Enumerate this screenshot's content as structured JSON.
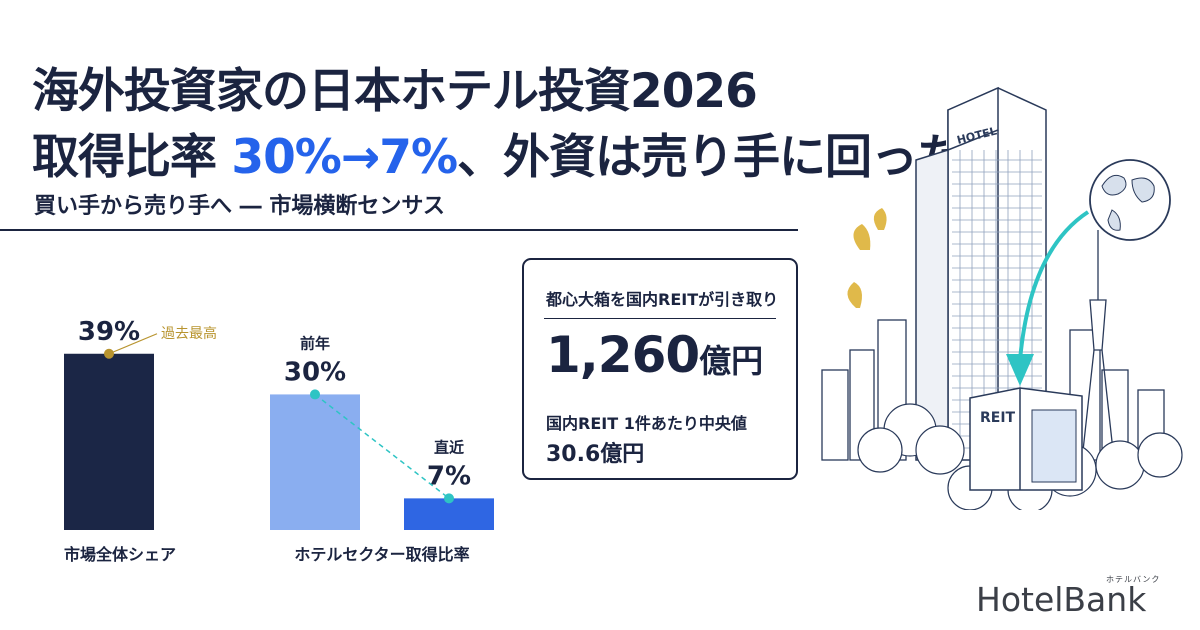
{
  "header": {
    "title_line1": "海外投資家の日本ホテル投資2026",
    "title_line2_prefix": "取得比率",
    "title_line2_accent": "30%→7%",
    "title_line2_suffix": "、外資は売り手に回った",
    "subtitle": "買い手から売り手へ ― 市場横断センサス"
  },
  "chart_data": {
    "type": "bar",
    "title": "",
    "ylim": [
      0,
      45
    ],
    "groups": [
      {
        "label": "市場全体シェア",
        "bars": [
          {
            "value": 39,
            "label": "39%",
            "caption": "",
            "annotation": "過去最高",
            "color": "#1b2646"
          }
        ]
      },
      {
        "label": "ホテルセクター取得比率",
        "bars": [
          {
            "value": 30,
            "label": "30%",
            "caption": "前年",
            "annotation": "",
            "color": "#8aaef0"
          },
          {
            "value": 7,
            "label": "7%",
            "caption": "直近",
            "annotation": "",
            "color": "#2f66e3"
          }
        ]
      }
    ],
    "colors": {
      "annotation": "#b8942f",
      "connector": "#2ec4c4"
    }
  },
  "reit_card": {
    "heading": "都心大箱を国内REITが引き取り",
    "amount": "1,260",
    "amount_unit": "億円",
    "median_label": "国内REIT 1件あたり中央値",
    "median_value": "30.6億円"
  },
  "illustration": {
    "hotel_sign": "HOTEL",
    "reit_sign": "REIT",
    "icons": [
      "hotel-tower-icon",
      "globe-icon",
      "ginkgo-leaf-icon",
      "tokyo-skytree-icon",
      "reit-building-icon",
      "transfer-arrow-icon"
    ]
  },
  "logo": {
    "text": "HotelBank",
    "kana": "ホテルバンク"
  }
}
